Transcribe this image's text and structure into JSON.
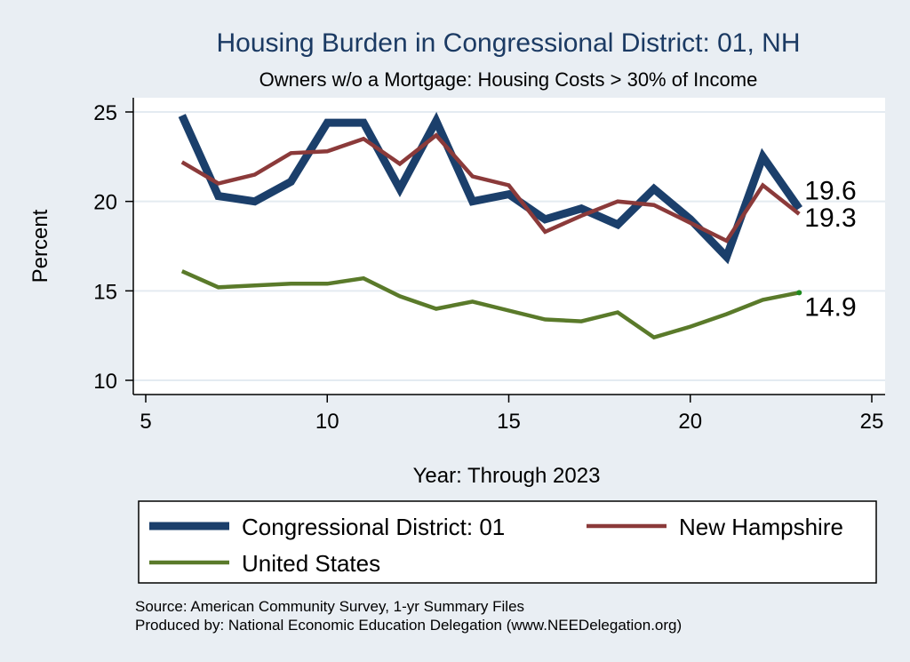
{
  "chart_data": {
    "type": "line",
    "title": "Housing Burden in Congressional District:  01, NH",
    "subtitle": "Owners w/o a Mortgage: Housing Costs > 30% of Income",
    "xlabel": "Year: Through 2023",
    "ylabel": "Percent",
    "xlim": [
      5,
      25
    ],
    "ylim": [
      10,
      25
    ],
    "xticks": [
      5,
      10,
      15,
      20,
      25
    ],
    "yticks": [
      10,
      15,
      20,
      25
    ],
    "grid": true,
    "legend_position": "bottom",
    "x": [
      6,
      7,
      8,
      9,
      10,
      11,
      12,
      13,
      14,
      15,
      16,
      17,
      18,
      19,
      20,
      21,
      22,
      23
    ],
    "series": [
      {
        "name": "Congressional District:  01",
        "color": "#1b3f6b",
        "line": "thick",
        "values": [
          24.8,
          20.3,
          20.0,
          21.1,
          24.4,
          24.4,
          20.7,
          24.5,
          20.0,
          20.4,
          19.0,
          19.6,
          18.7,
          20.7,
          19.0,
          16.9,
          22.5,
          19.6
        ],
        "end_label": "19.6"
      },
      {
        "name": "New Hampshire",
        "color": "#8b3a3a",
        "line": "medium",
        "values": [
          22.2,
          21.0,
          21.5,
          22.7,
          22.8,
          23.5,
          22.1,
          23.7,
          21.4,
          20.9,
          18.3,
          19.2,
          20.0,
          19.8,
          18.8,
          17.8,
          20.9,
          19.3
        ],
        "end_label": "19.3"
      },
      {
        "name": "United States",
        "color": "#5a7a2a",
        "line": "medium",
        "values": [
          16.1,
          15.2,
          15.3,
          15.4,
          15.4,
          15.7,
          14.7,
          14.0,
          14.4,
          13.9,
          13.4,
          13.3,
          13.8,
          12.4,
          13.0,
          13.7,
          14.5,
          14.9
        ],
        "end_label": "14.9"
      }
    ]
  },
  "source": {
    "line1": "Source: American Community Survey, 1-yr Summary Files",
    "line2": "Produced by: National Economic Education Delegation (www.NEEDelegation.org)"
  }
}
